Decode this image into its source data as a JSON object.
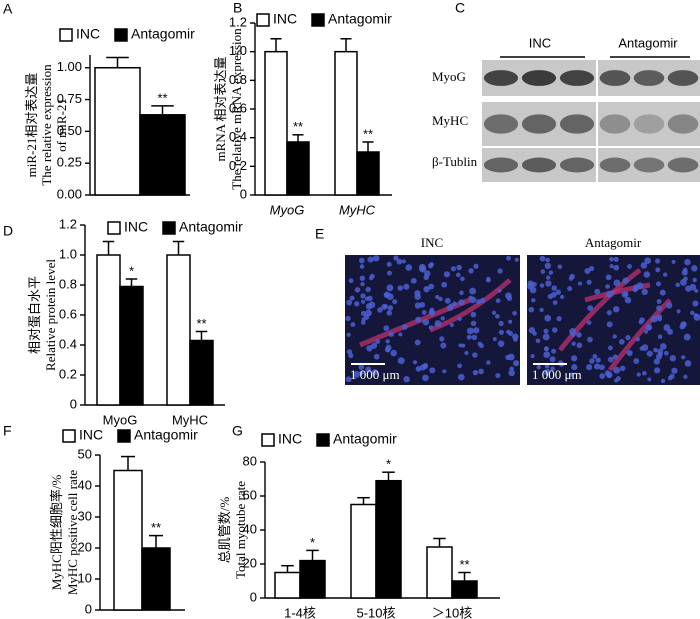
{
  "chart_data": [
    {
      "type": "bar",
      "panel": "A",
      "ylabel": [
        "miR-21相对表达量",
        "The relative expression",
        "of miR-21"
      ],
      "categories": [
        null
      ],
      "series": [
        {
          "name": "INC",
          "color": "#ffffff",
          "values": [
            1.0
          ],
          "errors": [
            0.08
          ]
        },
        {
          "name": "Antagomir",
          "color": "#000000",
          "values": [
            0.63
          ],
          "errors": [
            0.07
          ],
          "significance": [
            "**"
          ]
        }
      ],
      "ylim": [
        0,
        1.1
      ],
      "yticks": [
        {
          "value": 0,
          "label": "0.00"
        },
        {
          "value": 0.25,
          "label": "0.25"
        },
        {
          "value": 0.5,
          "label": "0.50"
        },
        {
          "value": 0.75,
          "label": "0.75"
        },
        {
          "value": 1,
          "label": "1.00"
        }
      ]
    },
    {
      "type": "bar",
      "panel": "B",
      "ylabel": [
        "mRNA 相对表达量",
        "The relative mRNA expression"
      ],
      "categories": [
        "MyoG",
        "MyHC"
      ],
      "category_style": "italic",
      "series": [
        {
          "name": "INC",
          "color": "#ffffff",
          "values": [
            1.0,
            1.0
          ],
          "errors": [
            0.09,
            0.09
          ]
        },
        {
          "name": "Antagomir",
          "color": "#000000",
          "values": [
            0.37,
            0.3
          ],
          "errors": [
            0.05,
            0.07
          ],
          "significance": [
            "**",
            "**"
          ]
        }
      ],
      "ylim": [
        0,
        1.2
      ],
      "yticks": [
        0,
        {
          "value": 0.2,
          "label": "0.2"
        },
        {
          "value": 0.4,
          "label": "0.4"
        },
        {
          "value": 0.6,
          "label": "0.6"
        },
        {
          "value": 0.8,
          "label": "0.8"
        },
        {
          "value": 1,
          "label": "1.0"
        },
        {
          "value": 1.2,
          "label": "1.2"
        }
      ]
    },
    {
      "type": "bar",
      "panel": "D",
      "ylabel": [
        "相对蛋白水平",
        "Relative protein level"
      ],
      "categories": [
        "MyoG",
        "MyHC"
      ],
      "category_style": "normal",
      "series": [
        {
          "name": "INC",
          "color": "#ffffff",
          "values": [
            1.0,
            1.0
          ],
          "errors": [
            0.09,
            0.09
          ]
        },
        {
          "name": "Antagomir",
          "color": "#000000",
          "values": [
            0.79,
            0.43
          ],
          "errors": [
            0.05,
            0.06
          ],
          "significance": [
            "*",
            "**"
          ]
        }
      ],
      "ylim": [
        0,
        1.2
      ],
      "yticks": [
        0,
        {
          "value": 0.2,
          "label": "0.2"
        },
        {
          "value": 0.4,
          "label": "0.4"
        },
        {
          "value": 0.6,
          "label": "0.6"
        },
        {
          "value": 0.8,
          "label": "0.8"
        },
        {
          "value": 1,
          "label": "1.0"
        },
        {
          "value": 1.2,
          "label": "1.2"
        }
      ]
    },
    {
      "type": "bar",
      "panel": "F",
      "ylabel": [
        "MyHC阳性细胞率/%",
        "MyHC positive cell rate"
      ],
      "categories": [
        null
      ],
      "series": [
        {
          "name": "INC",
          "color": "#ffffff",
          "values": [
            45
          ],
          "errors": [
            4.5
          ]
        },
        {
          "name": "Antagomir",
          "color": "#000000",
          "values": [
            20
          ],
          "errors": [
            4
          ],
          "significance": [
            "**"
          ]
        }
      ],
      "ylim": [
        0,
        50
      ],
      "yticks": [
        0,
        10,
        20,
        30,
        40,
        50
      ]
    },
    {
      "type": "bar",
      "panel": "G",
      "ylabel": [
        "总肌管数/%",
        "Total myotube rate"
      ],
      "categories": [
        "1-4核",
        "5-10核",
        "＞10核"
      ],
      "category_style": "normal",
      "series": [
        {
          "name": "INC",
          "color": "#ffffff",
          "values": [
            15,
            55,
            30
          ],
          "errors": [
            4,
            4,
            5
          ]
        },
        {
          "name": "Antagomir",
          "color": "#000000",
          "values": [
            22,
            69,
            10
          ],
          "errors": [
            6,
            5,
            5
          ],
          "significance": [
            "*",
            "*",
            "**"
          ]
        }
      ],
      "ylim": [
        0,
        80
      ],
      "yticks": [
        0,
        20,
        40,
        60,
        80
      ]
    }
  ],
  "blot": {
    "panel": "C",
    "groups": [
      "INC",
      "Antagomir"
    ],
    "rows": [
      "MyoG",
      "MyHC",
      "β-Tublin"
    ]
  },
  "micrographs": {
    "panel": "E",
    "groups": [
      "INC",
      "Antagomir"
    ],
    "scale_bar": "1 000 μm"
  }
}
